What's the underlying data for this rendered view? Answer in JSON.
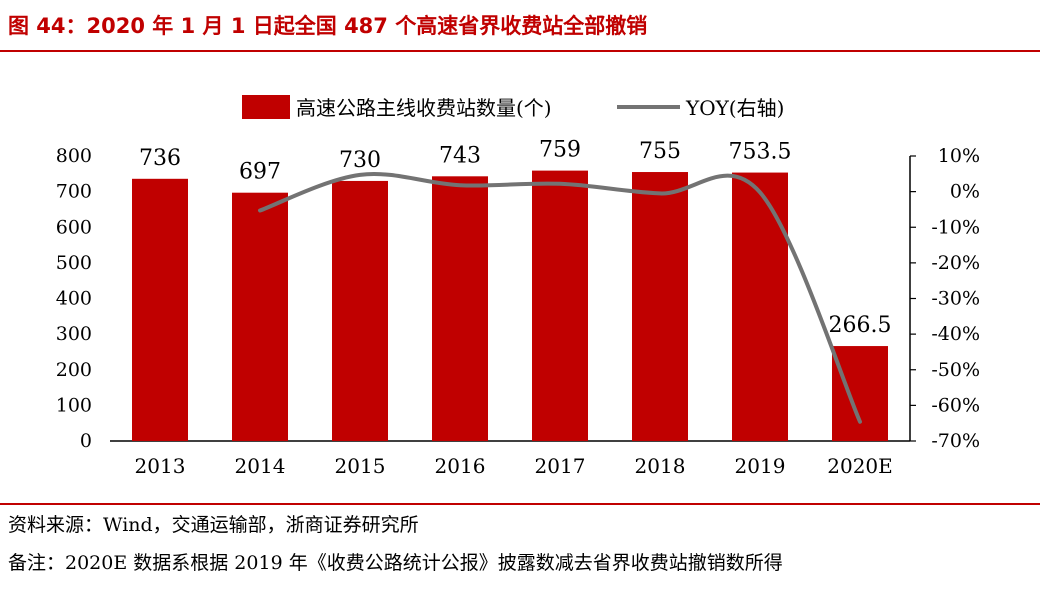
{
  "figure": {
    "title": "图 44：2020 年 1 月 1 日起全国 487 个高速省界收费站全部撤销"
  },
  "notes": {
    "source": "资料来源：Wind，交通运输部，浙商证券研究所",
    "remark": "备注：2020E 数据系根据 2019 年《收费公路统计公报》披露数减去省界收费站撤销数所得"
  },
  "colors": {
    "title": "#c00000",
    "bar": "#c00000",
    "line": "#737373"
  },
  "chart_data": {
    "type": "bar",
    "title": "",
    "categories": [
      "2013",
      "2014",
      "2015",
      "2016",
      "2017",
      "2018",
      "2019",
      "2020E"
    ],
    "series": [
      {
        "name": "高速公路主线收费站数量(个)",
        "type": "bar",
        "axis": "left",
        "values": [
          736,
          697,
          730,
          743,
          759,
          755,
          753.5,
          266.5
        ],
        "labels": [
          "736",
          "697",
          "730",
          "743",
          "759",
          "755",
          "753.5",
          "266.5"
        ]
      },
      {
        "name": "YOY(右轴)",
        "type": "line",
        "axis": "right",
        "smooth": true,
        "values": [
          null,
          -5.3,
          4.7,
          1.8,
          2.2,
          -0.5,
          -0.2,
          -64.6
        ]
      }
    ],
    "y_left": {
      "ylim": [
        0,
        800
      ],
      "ticks": [
        "0",
        "100",
        "200",
        "300",
        "400",
        "500",
        "600",
        "700",
        "800"
      ]
    },
    "y_right": {
      "ylim": [
        -70,
        10
      ],
      "unit": "%",
      "ticks": [
        "10%",
        "0%",
        "-10%",
        "-20%",
        "-30%",
        "-40%",
        "-50%",
        "-60%",
        "-70%"
      ]
    },
    "legend": "top",
    "grid": false
  }
}
